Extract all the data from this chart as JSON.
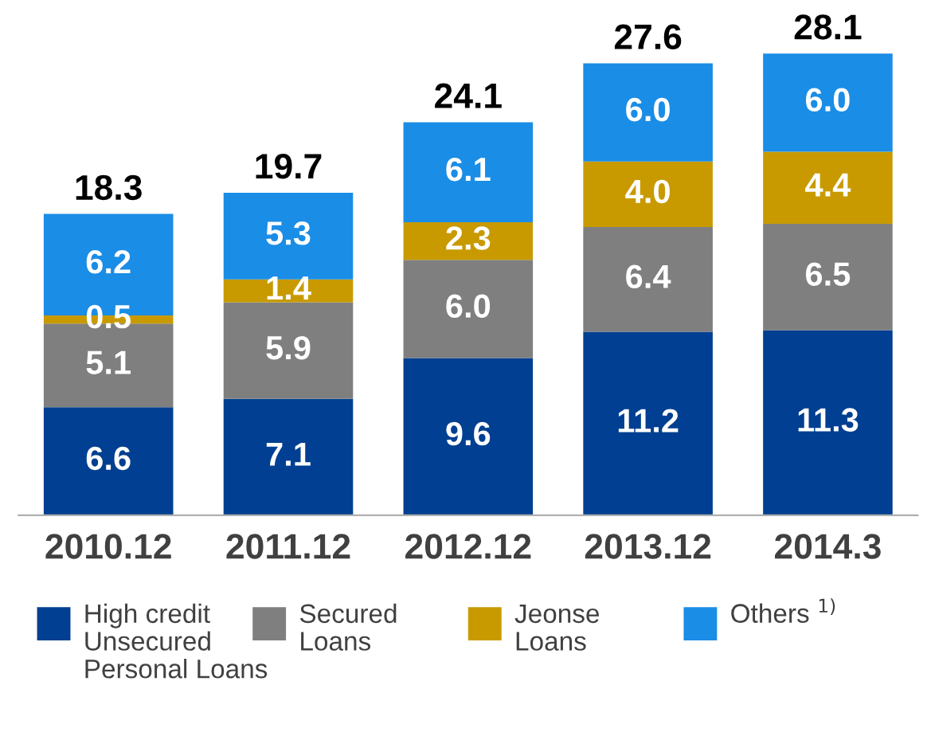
{
  "chart_data": {
    "type": "bar",
    "stacked": true,
    "legend": "bottom",
    "grid": false,
    "categories": [
      "2010.12",
      "2011.12",
      "2012.12",
      "2013.12",
      "2014.3"
    ],
    "series": [
      {
        "name": "High credit\nUnsecured\nPersonal Loans",
        "color": "#003f91",
        "values": [
          6.6,
          7.1,
          9.6,
          11.2,
          11.3
        ],
        "value_labels": [
          "6.6",
          "7.1",
          "9.6",
          "11.2",
          "11.3"
        ]
      },
      {
        "name": "Secured\nLoans",
        "color": "#7f7f7f",
        "values": [
          5.1,
          5.9,
          6.0,
          6.4,
          6.5
        ],
        "value_labels": [
          "5.1",
          "5.9",
          "6.0",
          "6.4",
          "6.5"
        ]
      },
      {
        "name": "Jeonse\nLoans",
        "color": "#c89a00",
        "values": [
          0.5,
          1.4,
          2.3,
          4.0,
          4.4
        ],
        "value_labels": [
          "0.5",
          "1.4",
          "2.3",
          "4.0",
          "4.4"
        ]
      },
      {
        "name": "Others $^{1)}$",
        "color": "#1a8de6",
        "values": [
          6.2,
          5.3,
          6.1,
          6.0,
          6.0
        ],
        "value_labels": [
          "6.2",
          "5.3",
          "6.1",
          "6.0",
          "6.0"
        ]
      }
    ],
    "totals": [
      "18.3",
      "19.7",
      "24.1",
      "27.6",
      "28.1"
    ]
  }
}
